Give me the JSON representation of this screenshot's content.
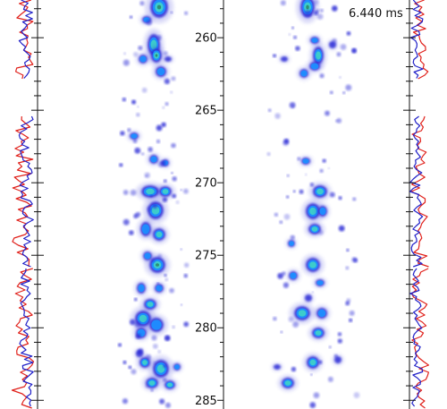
{
  "time_readout": "6.440 ms",
  "depth_axis": {
    "ticks": [
      "260",
      "265",
      "270",
      "275",
      "280",
      "285"
    ],
    "range": [
      257.4,
      285.6
    ]
  },
  "colors": {
    "background": "#ffffff",
    "axis": "#111111",
    "blob_outer": "#2b2bd6",
    "blob_mid": "#1e8fff",
    "blob_inner": "#3fd0c8",
    "blob_core": "#2a8a6a",
    "trace_red": "#e0201a",
    "trace_blue": "#2020c8"
  }
}
